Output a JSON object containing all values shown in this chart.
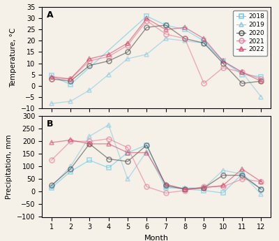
{
  "months": [
    1,
    2,
    3,
    4,
    5,
    6,
    7,
    8,
    9,
    10,
    11,
    12
  ],
  "temperature": {
    "2018": [
      4.5,
      0.5,
      null,
      null,
      null,
      31,
      27,
      25,
      20,
      11,
      5,
      4
    ],
    "2019": [
      -8,
      -7,
      -2,
      5,
      12,
      14,
      21,
      20,
      19,
      11,
      6,
      -5
    ],
    "2020": [
      3,
      2,
      9,
      11,
      15,
      26,
      27,
      21,
      19,
      10,
      1,
      2
    ],
    "2021": [
      3,
      3,
      11,
      13,
      18,
      29,
      23,
      21,
      1,
      8,
      6,
      3
    ],
    "2022": [
      4,
      3,
      12,
      14,
      19,
      30,
      25,
      26,
      21,
      11,
      6,
      2
    ]
  },
  "precipitation": {
    "2018": [
      15,
      80,
      125,
      95,
      155,
      185,
      20,
      10,
      5,
      -5,
      70,
      10
    ],
    "2019": [
      20,
      100,
      220,
      265,
      50,
      160,
      15,
      15,
      15,
      85,
      70,
      -10
    ],
    "2020": [
      25,
      90,
      190,
      130,
      120,
      185,
      25,
      10,
      15,
      65,
      65,
      10
    ],
    "2021": [
      125,
      200,
      200,
      210,
      175,
      20,
      -5,
      5,
      20,
      20,
      50,
      40
    ],
    "2022": [
      195,
      205,
      190,
      190,
      155,
      155,
      30,
      10,
      15,
      25,
      90,
      40
    ]
  },
  "colors": {
    "2018": "#5bc8e8",
    "2019": "#82c8e0",
    "2020": "#404040",
    "2021": "#e87090",
    "2022": "#d04060"
  },
  "markers": {
    "2018": "s",
    "2019": "^",
    "2020": "o",
    "2021": "o",
    "2022": "^"
  },
  "title_A": "A",
  "title_B": "B",
  "ylabel_A": "Temperature, °C",
  "ylabel_B": "Precipitation, mm",
  "xlabel": "Month",
  "ylim_A": [
    -10,
    35
  ],
  "ylim_B": [
    -100,
    300
  ],
  "yticks_A": [
    -10,
    -5,
    0,
    5,
    10,
    15,
    20,
    25,
    30,
    35
  ],
  "yticks_B": [
    -100,
    -50,
    0,
    50,
    100,
    150,
    200,
    250,
    300
  ],
  "bg_color": "#f5f0e8"
}
